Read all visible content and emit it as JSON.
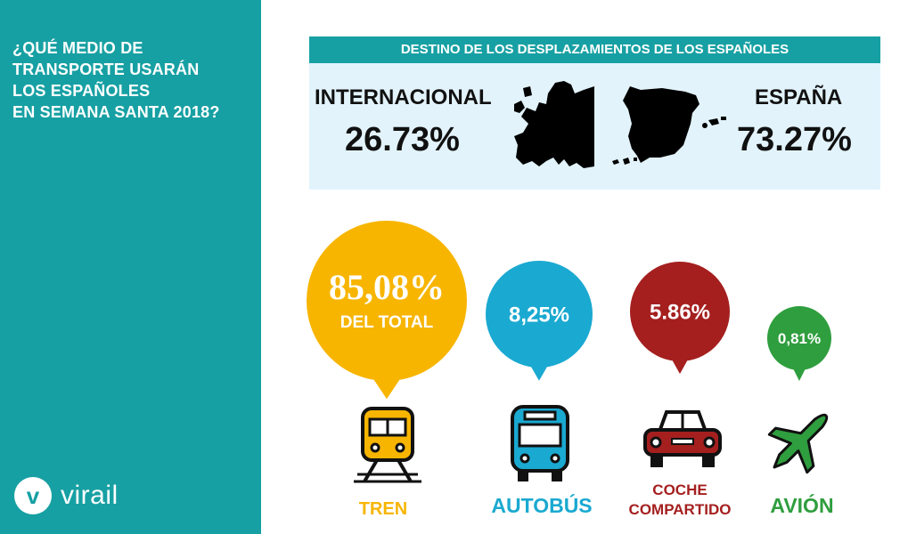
{
  "sidebar": {
    "title": "¿QUÉ MEDIO DE\nTRANSPORTE USARÁN\nLOS ESPAÑOLES\nEN SEMANA SANTA 2018?",
    "logo_mark": "v",
    "logo_text": "virail"
  },
  "destinations": {
    "header": "DESTINO DE LOS DESPLAZAMIENTOS DE LOS ESPAÑOLES",
    "international": {
      "label": "INTERNACIONAL",
      "value": "26.73%"
    },
    "spain": {
      "label": "ESPAÑA",
      "value": "73.27%"
    }
  },
  "chart_data": {
    "type": "bubble",
    "categories": [
      "TREN",
      "AUTOBÚS",
      "COCHE COMPARTIDO",
      "AVIÓN"
    ],
    "values": [
      85.08,
      8.25,
      5.86,
      0.81
    ],
    "value_labels": [
      "85,08%",
      "8,25%",
      "5.86%",
      "0,81%"
    ],
    "subtitle_labels": [
      "DEL TOTAL",
      "",
      "",
      ""
    ],
    "colors": [
      "#f7b500",
      "#1aa9d1",
      "#a51f1f",
      "#2f9e3e"
    ]
  },
  "icons": [
    "train-icon",
    "bus-icon",
    "car-icon",
    "plane-icon"
  ]
}
